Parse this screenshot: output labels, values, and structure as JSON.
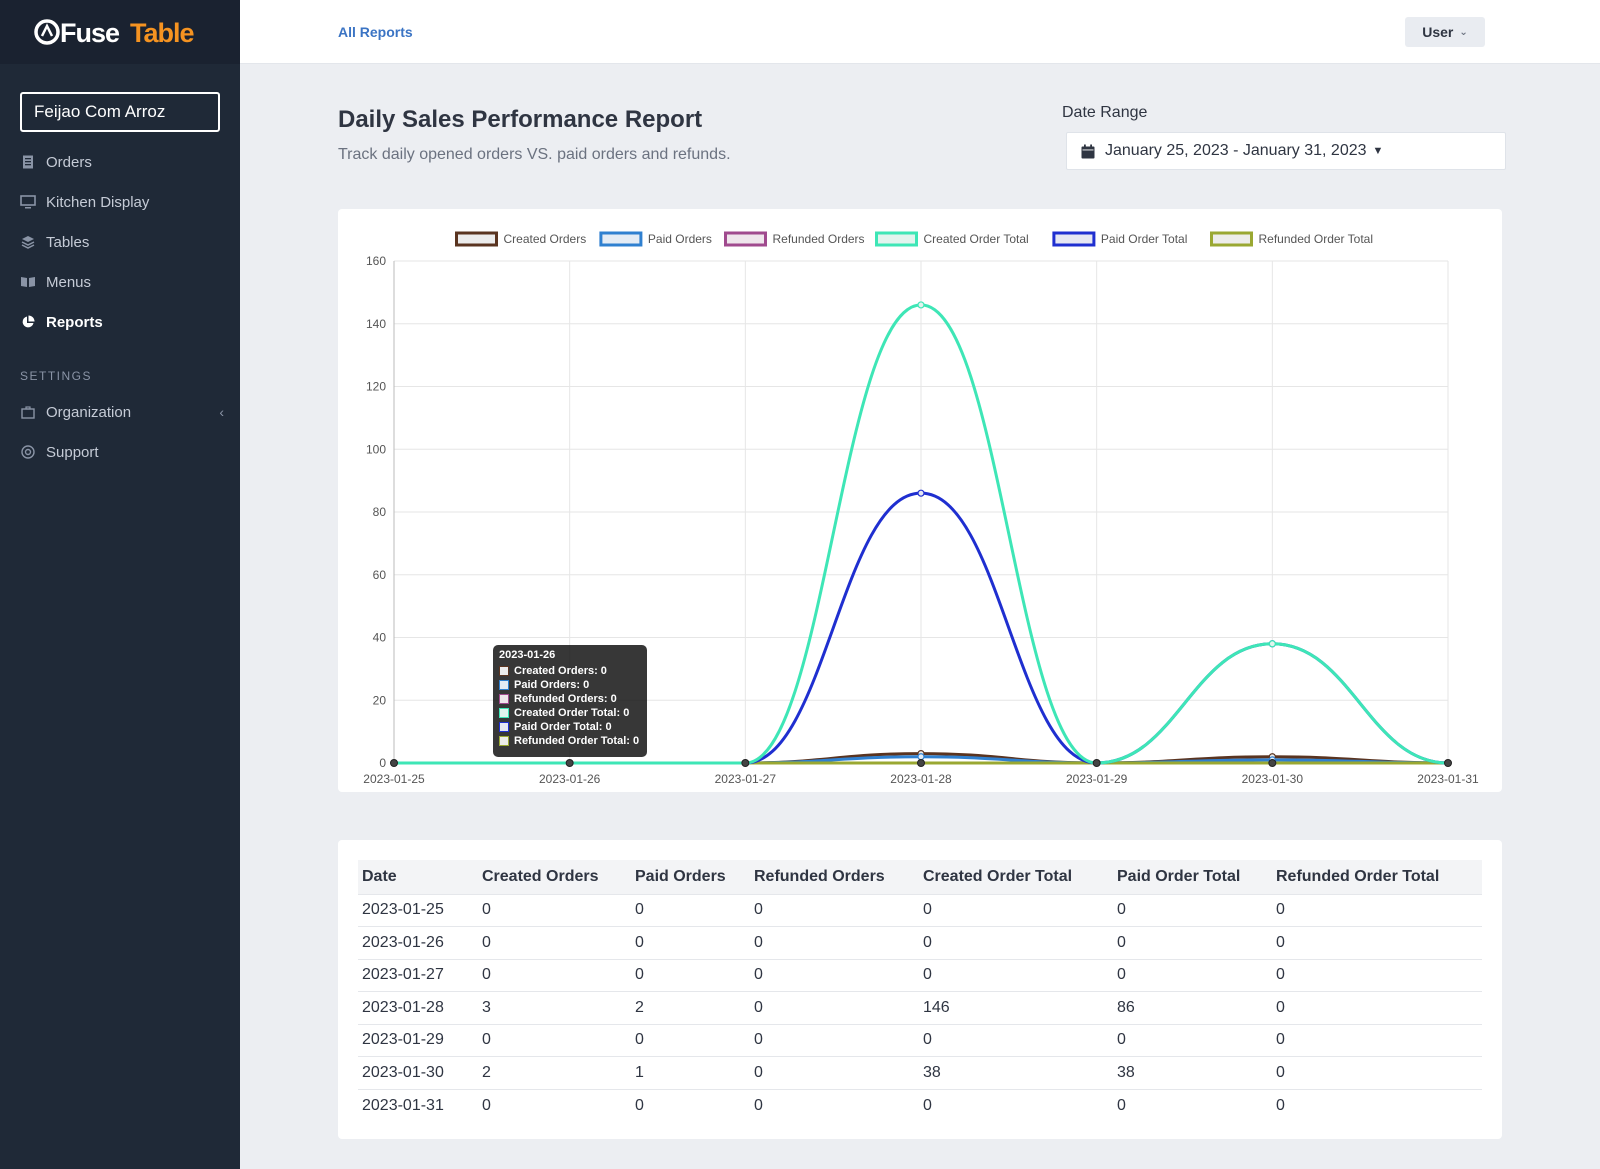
{
  "app": {
    "brand_prefix": "Fuse",
    "brand_suffix": "Table"
  },
  "sidebar": {
    "organization": "Feijao Com Arroz",
    "items": [
      {
        "label": "Orders",
        "icon": "receipt-icon"
      },
      {
        "label": "Kitchen Display",
        "icon": "monitor-icon"
      },
      {
        "label": "Tables",
        "icon": "layers-icon"
      },
      {
        "label": "Menus",
        "icon": "book-icon"
      },
      {
        "label": "Reports",
        "icon": "pie-chart-icon",
        "active": true
      }
    ],
    "settings_heading": "SETTINGS",
    "settings_items": [
      {
        "label": "Organization",
        "icon": "briefcase-icon"
      },
      {
        "label": "Support",
        "icon": "lifebuoy-icon"
      }
    ]
  },
  "topbar": {
    "breadcrumb": "All Reports",
    "user_label": "User"
  },
  "header": {
    "title": "Daily Sales Performance Report",
    "subtitle": "Track daily opened orders VS. paid orders and refunds.",
    "date_range_label": "Date Range",
    "date_range_value": "January 25, 2023 - January 31, 2023"
  },
  "chart_data": {
    "type": "line",
    "x": [
      "2023-01-25",
      "2023-01-26",
      "2023-01-27",
      "2023-01-28",
      "2023-01-29",
      "2023-01-30",
      "2023-01-31"
    ],
    "ylim": [
      0,
      160
    ],
    "yticks": [
      0,
      20,
      40,
      60,
      80,
      100,
      120,
      140,
      160
    ],
    "grid": true,
    "legend": "top",
    "series": [
      {
        "name": "Created Orders",
        "color": "#5a3420",
        "fill": "#ececec",
        "values": [
          0,
          0,
          0,
          3,
          0,
          2,
          0
        ]
      },
      {
        "name": "Paid Orders",
        "color": "#2f80d0",
        "fill": "#e4ecf5",
        "values": [
          0,
          0,
          0,
          2,
          0,
          1,
          0
        ]
      },
      {
        "name": "Refunded Orders",
        "color": "#a04a8e",
        "fill": "#efe6ec",
        "values": [
          0,
          0,
          0,
          0,
          0,
          0,
          0
        ]
      },
      {
        "name": "Created Order Total",
        "color": "#3ee6b6",
        "fill": "#e2f4ee",
        "values": [
          0,
          0,
          0,
          146,
          0,
          38,
          0
        ]
      },
      {
        "name": "Paid Order Total",
        "color": "#1f2fd0",
        "fill": "#e6e7f3",
        "values": [
          0,
          0,
          0,
          86,
          0,
          38,
          0
        ]
      },
      {
        "name": "Refunded Order Total",
        "color": "#9aa832",
        "fill": "#ededea",
        "values": [
          0,
          0,
          0,
          0,
          0,
          0,
          0
        ]
      }
    ]
  },
  "tooltip": {
    "title": "2023-01-26",
    "rows": [
      "Created Orders: 0",
      "Paid Orders: 0",
      "Refunded Orders: 0",
      "Created Order Total: 0",
      "Paid Order Total: 0",
      "Refunded Order Total: 0"
    ]
  },
  "table": {
    "headers": [
      "Date",
      "Created Orders",
      "Paid Orders",
      "Refunded Orders",
      "Created Order Total",
      "Paid Order Total",
      "Refunded Order Total"
    ],
    "rows": [
      [
        "2023-01-25",
        "0",
        "0",
        "0",
        "0",
        "0",
        "0"
      ],
      [
        "2023-01-26",
        "0",
        "0",
        "0",
        "0",
        "0",
        "0"
      ],
      [
        "2023-01-27",
        "0",
        "0",
        "0",
        "0",
        "0",
        "0"
      ],
      [
        "2023-01-28",
        "3",
        "2",
        "0",
        "146",
        "86",
        "0"
      ],
      [
        "2023-01-29",
        "0",
        "0",
        "0",
        "0",
        "0",
        "0"
      ],
      [
        "2023-01-30",
        "2",
        "1",
        "0",
        "38",
        "38",
        "0"
      ],
      [
        "2023-01-31",
        "0",
        "0",
        "0",
        "0",
        "0",
        "0"
      ]
    ]
  }
}
